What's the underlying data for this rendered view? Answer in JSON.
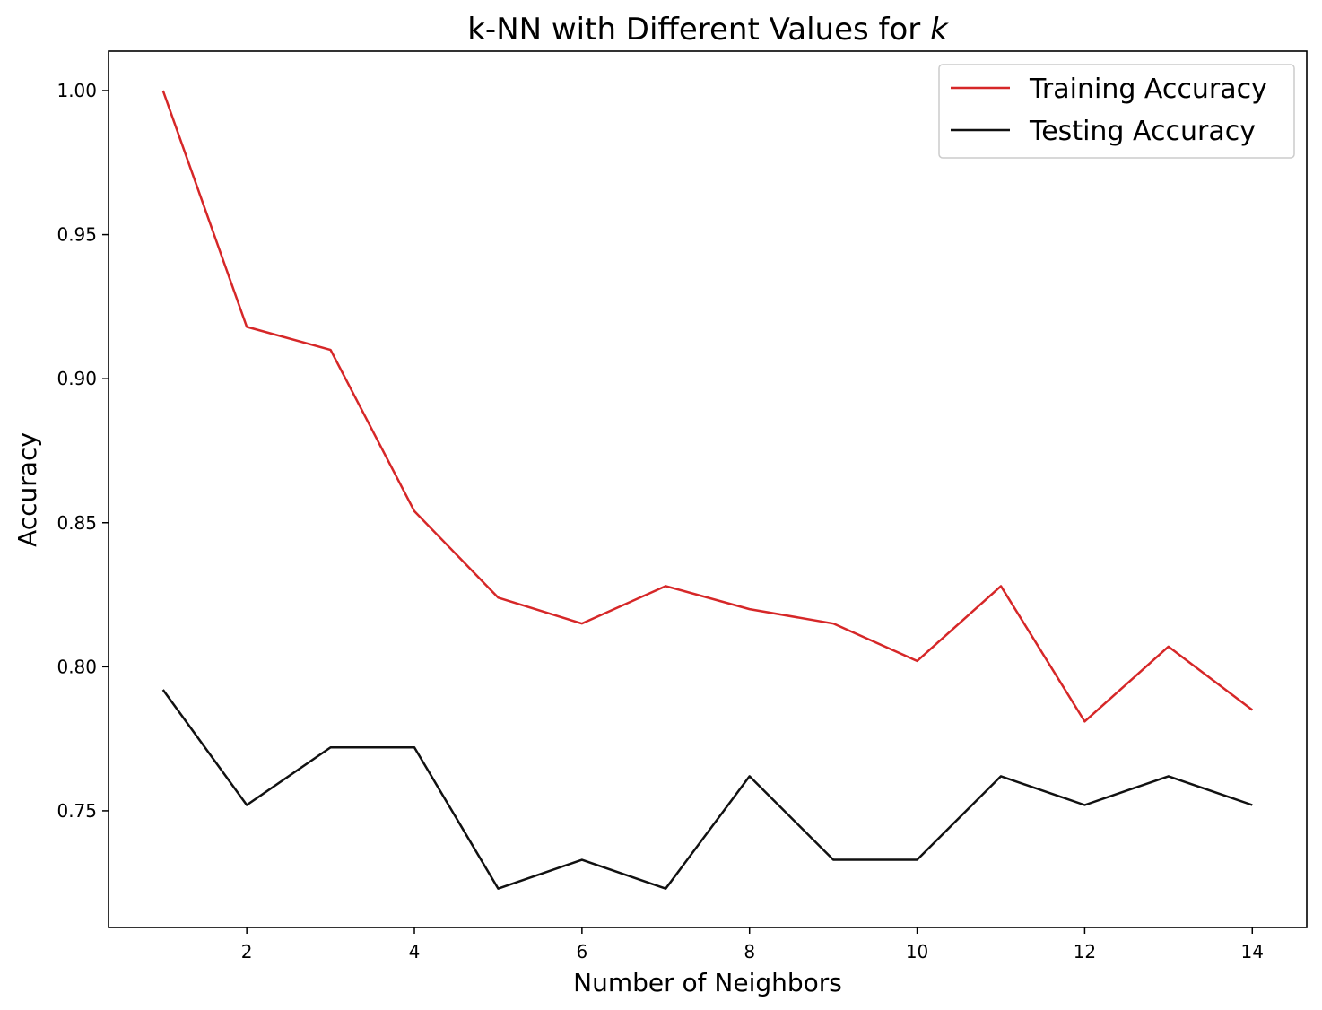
{
  "chart_data": {
    "type": "line",
    "title_main": "k-NN with Different Values for ",
    "title_var": "k",
    "xlabel": "Number of Neighbors",
    "ylabel": "Accuracy",
    "xlim": [
      0.35,
      14.65
    ],
    "ylim": [
      0.7095,
      1.0137
    ],
    "xticks": [
      2,
      4,
      6,
      8,
      10,
      12,
      14
    ],
    "yticks": [
      0.75,
      0.8,
      0.85,
      0.9,
      0.95,
      1.0
    ],
    "ytick_labels": [
      "0.75",
      "0.80",
      "0.85",
      "0.90",
      "0.95",
      "1.00"
    ],
    "grid": false,
    "legend_position": "top-right",
    "x": [
      1,
      2,
      3,
      4,
      5,
      6,
      7,
      8,
      9,
      10,
      11,
      12,
      13,
      14
    ],
    "series": [
      {
        "name": "Training Accuracy",
        "color": "#d62728",
        "values": [
          1.0,
          0.918,
          0.91,
          0.854,
          0.824,
          0.815,
          0.828,
          0.82,
          0.815,
          0.802,
          0.828,
          0.781,
          0.807,
          0.785
        ]
      },
      {
        "name": "Testing Accuracy",
        "color": "#111111",
        "values": [
          0.792,
          0.752,
          0.772,
          0.772,
          0.723,
          0.733,
          0.723,
          0.762,
          0.733,
          0.733,
          0.762,
          0.752,
          0.762,
          0.752
        ]
      }
    ]
  }
}
